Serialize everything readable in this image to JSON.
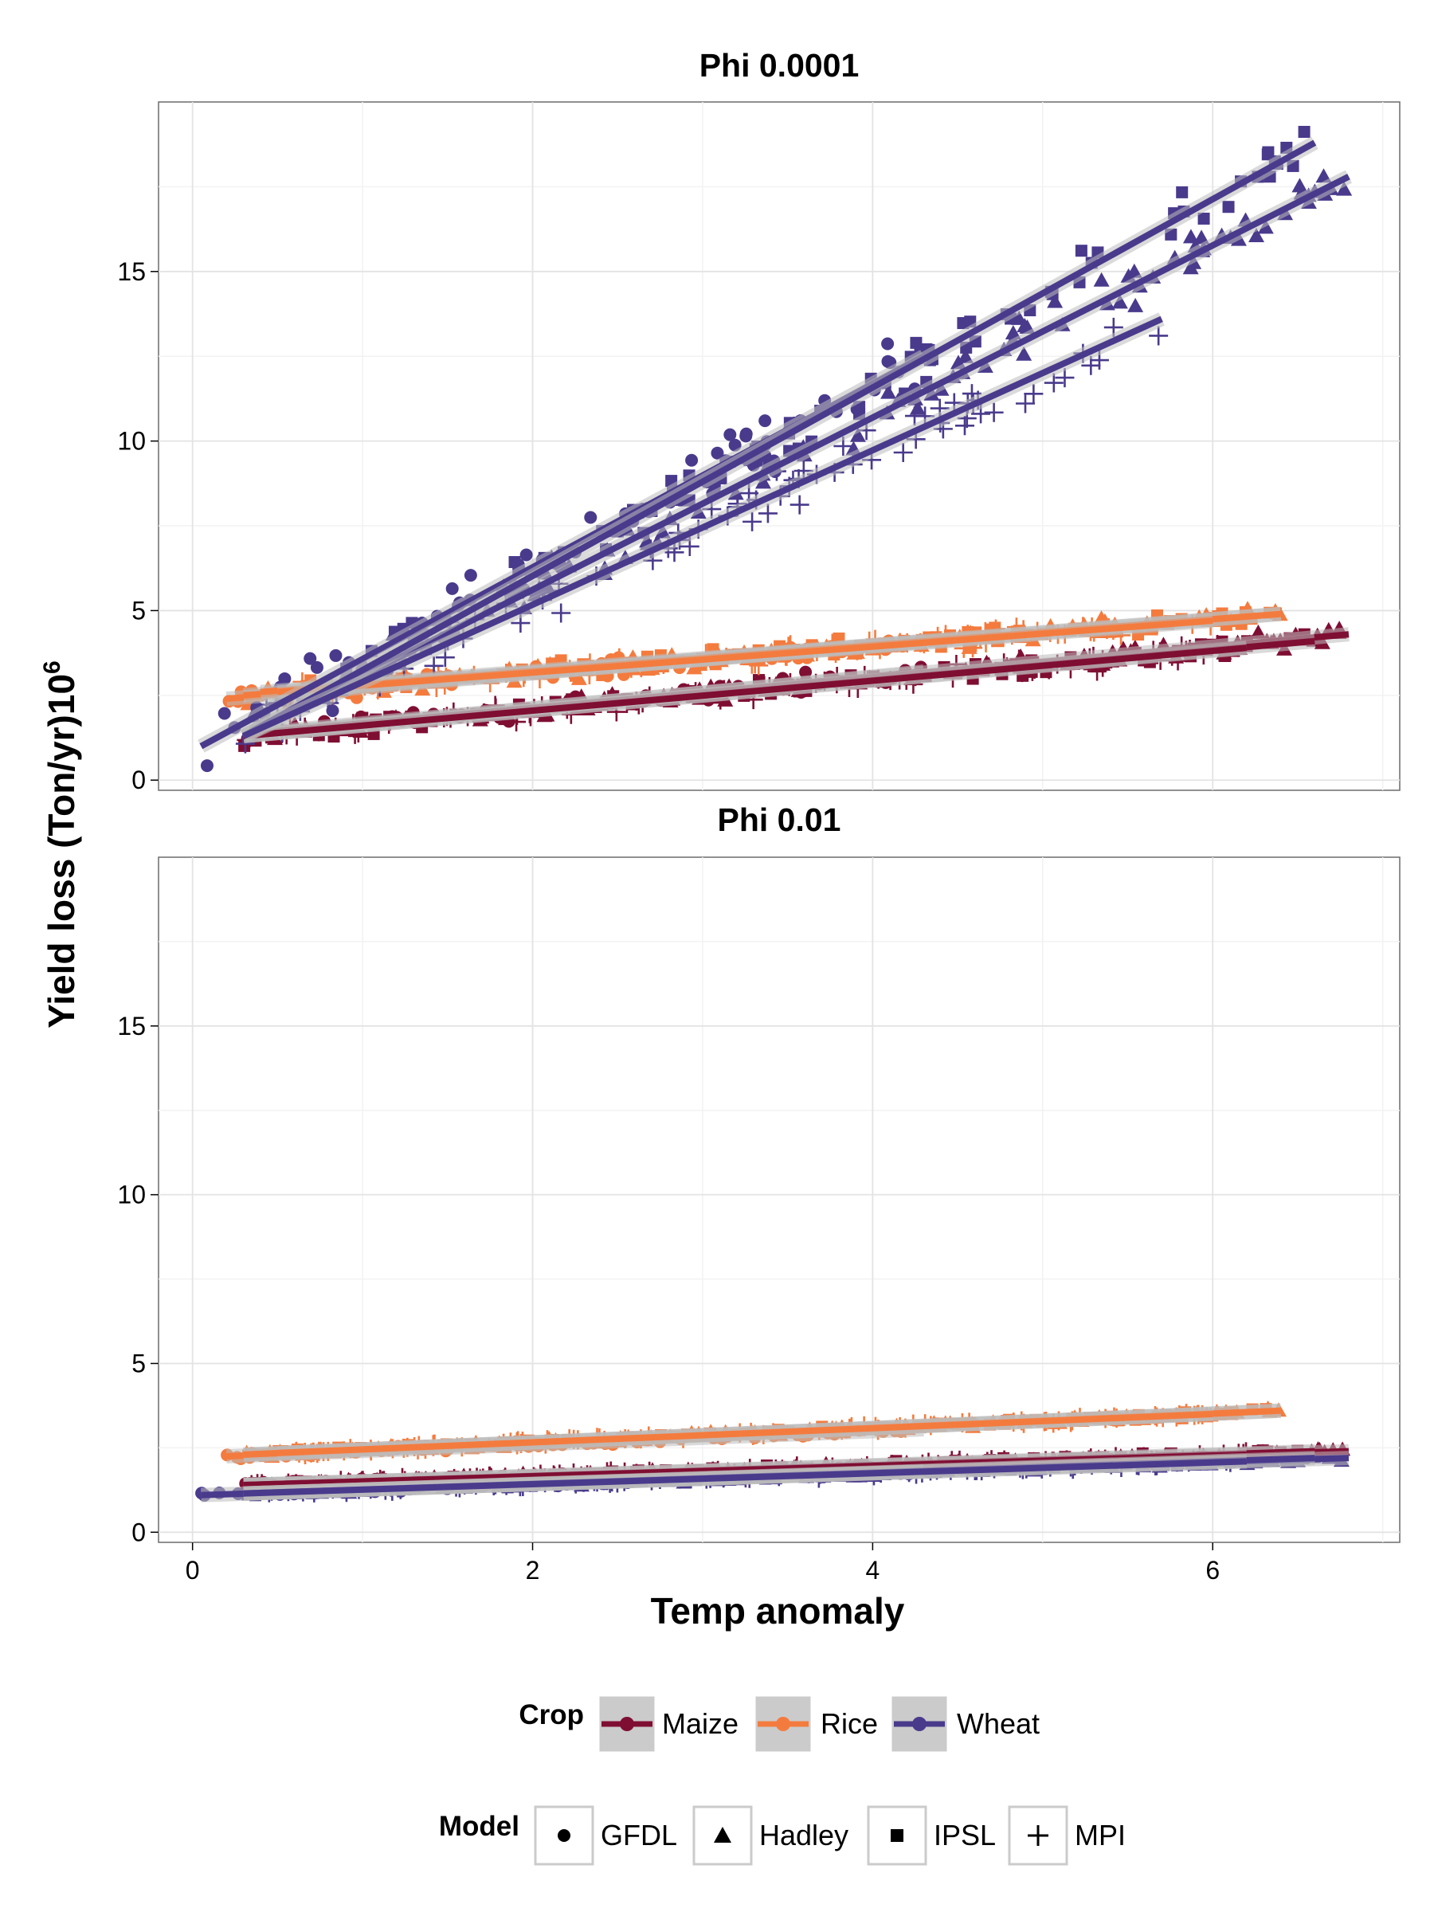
{
  "chart_data": {
    "type": "scatter",
    "xlabel": "Temp anomaly",
    "ylabel_main": "Yield loss  (Ton/yr)",
    "ylabel_power": "10",
    "ylabel_exp": "6",
    "xlim": [
      -0.2,
      7.1
    ],
    "ylim": [
      -0.3,
      20.0
    ],
    "x_ticks": [
      "0",
      "2",
      "4",
      "6"
    ],
    "y_ticks": [
      "0",
      "5",
      "10",
      "15"
    ],
    "x_tick_values": [
      0,
      2,
      4,
      6
    ],
    "y_tick_values": [
      0,
      5,
      10,
      15
    ],
    "grid": true,
    "legend_position": "bottom",
    "colors": {
      "Maize": "#7f0e33",
      "Rice": "#f47b3e",
      "Wheat": "#4a3a8c"
    },
    "legend": {
      "crop_title": "Crop",
      "crops": [
        "Maize",
        "Rice",
        "Wheat"
      ],
      "model_title": "Model",
      "models": [
        {
          "name": "GFDL",
          "shape": "circle-icon"
        },
        {
          "name": "Hadley",
          "shape": "triangle-icon"
        },
        {
          "name": "IPSL",
          "shape": "square-icon"
        },
        {
          "name": "MPI",
          "shape": "plus-icon"
        }
      ]
    },
    "panels": [
      {
        "title": "Phi 0.0001",
        "series": [
          {
            "crop": "Maize",
            "model": "GFDL",
            "x_range": [
              0.3,
              4.3
            ],
            "line": [
              [
                0.3,
                1.3
              ],
              [
                4.3,
                3.2
              ]
            ],
            "scatter": 0.25
          },
          {
            "crop": "Maize",
            "model": "Hadley",
            "x_range": [
              0.4,
              6.8
            ],
            "line": [
              [
                0.4,
                1.4
              ],
              [
                6.8,
                4.3
              ]
            ],
            "scatter": 0.2
          },
          {
            "crop": "Maize",
            "model": "IPSL",
            "x_range": [
              0.3,
              6.6
            ],
            "line": [
              [
                0.3,
                1.3
              ],
              [
                6.6,
                4.1
              ]
            ],
            "scatter": 0.2
          },
          {
            "crop": "Maize",
            "model": "MPI",
            "x_range": [
              0.3,
              6.2
            ],
            "line": [
              [
                0.3,
                1.3
              ],
              [
                6.2,
                3.9
              ]
            ],
            "scatter": 0.2
          },
          {
            "crop": "Rice",
            "model": "GFDL",
            "x_range": [
              0.2,
              4.3
            ],
            "line": [
              [
                0.2,
                2.4
              ],
              [
                4.3,
                4.1
              ]
            ],
            "scatter": 0.2
          },
          {
            "crop": "Rice",
            "model": "Hadley",
            "x_range": [
              0.3,
              6.4
            ],
            "line": [
              [
                0.3,
                2.5
              ],
              [
                6.4,
                4.9
              ]
            ],
            "scatter": 0.2
          },
          {
            "crop": "Rice",
            "model": "IPSL",
            "x_range": [
              0.4,
              6.4
            ],
            "line": [
              [
                0.4,
                2.6
              ],
              [
                6.4,
                4.9
              ]
            ],
            "scatter": 0.2
          },
          {
            "crop": "Rice",
            "model": "MPI",
            "x_range": [
              0.5,
              6.0
            ],
            "line": [
              [
                0.5,
                2.6
              ],
              [
                6.0,
                4.7
              ]
            ],
            "scatter": 0.2
          },
          {
            "crop": "Wheat",
            "model": "GFDL",
            "x_range": [
              0.05,
              4.3
            ],
            "line": [
              [
                0.05,
                1.0
              ],
              [
                4.3,
                12.5
              ]
            ],
            "scatter": 0.7
          },
          {
            "crop": "Wheat",
            "model": "Hadley",
            "x_range": [
              0.3,
              6.8
            ],
            "line": [
              [
                0.3,
                1.3
              ],
              [
                6.8,
                17.8
              ]
            ],
            "scatter": 0.5
          },
          {
            "crop": "Wheat",
            "model": "IPSL",
            "x_range": [
              0.3,
              6.6
            ],
            "line": [
              [
                0.3,
                1.3
              ],
              [
                6.6,
                18.8
              ]
            ],
            "scatter": 0.5
          },
          {
            "crop": "Wheat",
            "model": "MPI",
            "x_range": [
              0.3,
              5.7
            ],
            "line": [
              [
                0.3,
                1.3
              ],
              [
                5.7,
                13.6
              ]
            ],
            "scatter": 0.5
          }
        ]
      },
      {
        "title": "Phi 0.01",
        "series": [
          {
            "crop": "Maize",
            "model": "GFDL",
            "x_range": [
              0.3,
              4.3
            ],
            "line": [
              [
                0.3,
                1.4
              ],
              [
                4.3,
                1.9
              ]
            ],
            "scatter": 0.07
          },
          {
            "crop": "Maize",
            "model": "Hadley",
            "x_range": [
              0.3,
              6.8
            ],
            "line": [
              [
                0.3,
                1.4
              ],
              [
                6.8,
                2.4
              ]
            ],
            "scatter": 0.07
          },
          {
            "crop": "Maize",
            "model": "IPSL",
            "x_range": [
              0.3,
              6.6
            ],
            "line": [
              [
                0.3,
                1.4
              ],
              [
                6.6,
                2.4
              ]
            ],
            "scatter": 0.07
          },
          {
            "crop": "Maize",
            "model": "MPI",
            "x_range": [
              0.3,
              6.2
            ],
            "line": [
              [
                0.3,
                1.4
              ],
              [
                6.2,
                2.3
              ]
            ],
            "scatter": 0.07
          },
          {
            "crop": "Rice",
            "model": "GFDL",
            "x_range": [
              0.2,
              4.3
            ],
            "line": [
              [
                0.2,
                2.25
              ],
              [
                4.3,
                3.05
              ]
            ],
            "scatter": 0.07
          },
          {
            "crop": "Rice",
            "model": "Hadley",
            "x_range": [
              0.3,
              6.4
            ],
            "line": [
              [
                0.3,
                2.3
              ],
              [
                6.4,
                3.6
              ]
            ],
            "scatter": 0.07
          },
          {
            "crop": "Rice",
            "model": "IPSL",
            "x_range": [
              0.3,
              6.4
            ],
            "line": [
              [
                0.3,
                2.3
              ],
              [
                6.4,
                3.6
              ]
            ],
            "scatter": 0.07
          },
          {
            "crop": "Rice",
            "model": "MPI",
            "x_range": [
              0.5,
              6.0
            ],
            "line": [
              [
                0.5,
                2.35
              ],
              [
                6.0,
                3.5
              ]
            ],
            "scatter": 0.07
          },
          {
            "crop": "Wheat",
            "model": "GFDL",
            "x_range": [
              0.05,
              4.3
            ],
            "line": [
              [
                0.05,
                1.1
              ],
              [
                4.3,
                1.8
              ]
            ],
            "scatter": 0.06
          },
          {
            "crop": "Wheat",
            "model": "Hadley",
            "x_range": [
              0.3,
              6.8
            ],
            "line": [
              [
                0.3,
                1.15
              ],
              [
                6.8,
                2.2
              ]
            ],
            "scatter": 0.06
          },
          {
            "crop": "Wheat",
            "model": "IPSL",
            "x_range": [
              0.3,
              6.6
            ],
            "line": [
              [
                0.3,
                1.15
              ],
              [
                6.6,
                2.2
              ]
            ],
            "scatter": 0.06
          },
          {
            "crop": "Wheat",
            "model": "MPI",
            "x_range": [
              0.3,
              6.2
            ],
            "line": [
              [
                0.3,
                1.15
              ],
              [
                6.2,
                2.1
              ]
            ],
            "scatter": 0.06
          }
        ]
      }
    ]
  }
}
